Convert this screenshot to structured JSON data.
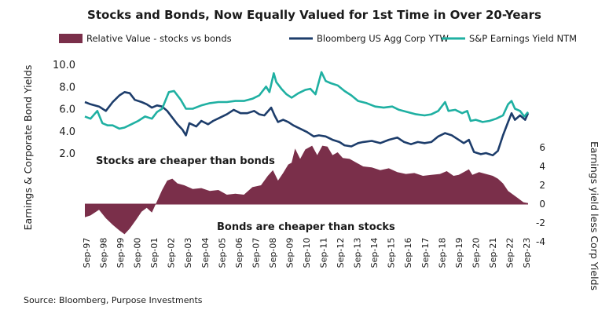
{
  "chart_data": {
    "type": "line",
    "title": "Stocks and Bonds, Now Equally Valued for 1st Time in Over 20-Years",
    "source": "Source: Bloomberg, Purpose Investments",
    "left_axis": {
      "label": "Earnings & Corporate Bond Yields",
      "ticks": [
        "2.0",
        "4.0",
        "6.0",
        "8.0",
        "10.0"
      ],
      "tick_values": [
        2,
        4,
        6,
        8,
        10
      ],
      "range": [
        2,
        10
      ]
    },
    "right_axis": {
      "label": "Earnings yield less  Corp Yields",
      "ticks": [
        "-4",
        "-2",
        "0",
        "2",
        "4",
        "6"
      ],
      "tick_values": [
        -4,
        -2,
        0,
        2,
        4,
        6
      ],
      "range": [
        -4,
        6
      ]
    },
    "x_axis": {
      "range": [
        1997.67,
        2023.67
      ],
      "ticks": [
        "Sep-97",
        "Sep-98",
        "Sep-99",
        "Sep-00",
        "Sep-01",
        "Sep-02",
        "Sep-03",
        "Sep-04",
        "Sep-05",
        "Sep-06",
        "Sep-07",
        "Sep-08",
        "Sep-09",
        "Sep-10",
        "Sep-11",
        "Sep-12",
        "Sep-13",
        "Sep-14",
        "Sep-15",
        "Sep-16",
        "Sep-17",
        "Sep-18",
        "Sep-19",
        "Sep-20",
        "Sep-21",
        "Sep-22",
        "Sep-23"
      ]
    },
    "annotations": {
      "cheaper_stocks": "Stocks are cheaper than bonds",
      "cheaper_bonds": "Bonds are cheaper than stocks"
    },
    "series": [
      {
        "name": "Relative Value - stocks vs bonds",
        "kind": "area",
        "axis": "right",
        "color": "#7a2f4a",
        "points": [
          [
            1997.67,
            -1.4
          ],
          [
            1998.0,
            -1.2
          ],
          [
            1998.5,
            -0.6
          ],
          [
            1998.9,
            -1.5
          ],
          [
            1999.3,
            -2.2
          ],
          [
            1999.7,
            -2.8
          ],
          [
            2000.0,
            -3.2
          ],
          [
            2000.3,
            -2.6
          ],
          [
            2000.7,
            -1.6
          ],
          [
            2001.0,
            -0.8
          ],
          [
            2001.3,
            -0.4
          ],
          [
            2001.6,
            -0.9
          ],
          [
            2001.9,
            0.3
          ],
          [
            2002.2,
            1.5
          ],
          [
            2002.5,
            2.5
          ],
          [
            2002.8,
            2.7
          ],
          [
            2003.1,
            2.2
          ],
          [
            2003.5,
            2.0
          ],
          [
            2004.0,
            1.6
          ],
          [
            2004.5,
            1.7
          ],
          [
            2005.0,
            1.4
          ],
          [
            2005.5,
            1.5
          ],
          [
            2006.0,
            1.0
          ],
          [
            2006.5,
            1.1
          ],
          [
            2007.0,
            1.0
          ],
          [
            2007.5,
            1.8
          ],
          [
            2008.0,
            2.0
          ],
          [
            2008.4,
            3.0
          ],
          [
            2008.7,
            3.6
          ],
          [
            2009.0,
            2.5
          ],
          [
            2009.3,
            3.3
          ],
          [
            2009.6,
            4.2
          ],
          [
            2009.8,
            4.4
          ],
          [
            2010.0,
            5.9
          ],
          [
            2010.3,
            4.8
          ],
          [
            2010.6,
            5.8
          ],
          [
            2010.8,
            6.0
          ],
          [
            2011.0,
            6.2
          ],
          [
            2011.3,
            5.2
          ],
          [
            2011.6,
            6.2
          ],
          [
            2011.9,
            6.1
          ],
          [
            2012.2,
            5.2
          ],
          [
            2012.5,
            5.5
          ],
          [
            2012.8,
            4.9
          ],
          [
            2013.2,
            4.8
          ],
          [
            2013.6,
            4.4
          ],
          [
            2014.0,
            4.0
          ],
          [
            2014.5,
            3.9
          ],
          [
            2015.0,
            3.6
          ],
          [
            2015.5,
            3.8
          ],
          [
            2016.0,
            3.4
          ],
          [
            2016.5,
            3.2
          ],
          [
            2017.0,
            3.3
          ],
          [
            2017.5,
            3.0
          ],
          [
            2018.0,
            3.1
          ],
          [
            2018.5,
            3.2
          ],
          [
            2018.9,
            3.5
          ],
          [
            2019.3,
            3.0
          ],
          [
            2019.6,
            3.1
          ],
          [
            2019.9,
            3.4
          ],
          [
            2020.2,
            3.7
          ],
          [
            2020.4,
            3.1
          ],
          [
            2020.8,
            3.4
          ],
          [
            2021.2,
            3.2
          ],
          [
            2021.6,
            3.0
          ],
          [
            2021.9,
            2.7
          ],
          [
            2022.2,
            2.2
          ],
          [
            2022.5,
            1.4
          ],
          [
            2022.8,
            1.0
          ],
          [
            2023.1,
            0.6
          ],
          [
            2023.4,
            0.2
          ],
          [
            2023.67,
            0.1
          ]
        ]
      },
      {
        "name": "Bloomberg US Agg Corp YTW",
        "kind": "line",
        "axis": "left",
        "color": "#1d3d6b",
        "points": [
          [
            1997.67,
            6.6
          ],
          [
            1998.0,
            6.4
          ],
          [
            1998.5,
            6.2
          ],
          [
            1998.9,
            5.8
          ],
          [
            1999.3,
            6.6
          ],
          [
            1999.7,
            7.2
          ],
          [
            2000.0,
            7.5
          ],
          [
            2000.3,
            7.4
          ],
          [
            2000.6,
            6.8
          ],
          [
            2001.0,
            6.6
          ],
          [
            2001.3,
            6.4
          ],
          [
            2001.6,
            6.1
          ],
          [
            2001.9,
            6.3
          ],
          [
            2002.2,
            6.2
          ],
          [
            2002.5,
            5.8
          ],
          [
            2002.8,
            5.2
          ],
          [
            2003.1,
            4.6
          ],
          [
            2003.4,
            4.1
          ],
          [
            2003.6,
            3.6
          ],
          [
            2003.8,
            4.7
          ],
          [
            2004.2,
            4.4
          ],
          [
            2004.5,
            4.9
          ],
          [
            2004.9,
            4.6
          ],
          [
            2005.2,
            4.9
          ],
          [
            2005.6,
            5.2
          ],
          [
            2006.0,
            5.5
          ],
          [
            2006.4,
            5.9
          ],
          [
            2006.8,
            5.6
          ],
          [
            2007.2,
            5.6
          ],
          [
            2007.6,
            5.8
          ],
          [
            2007.9,
            5.5
          ],
          [
            2008.2,
            5.4
          ],
          [
            2008.6,
            6.1
          ],
          [
            2008.8,
            5.4
          ],
          [
            2009.0,
            4.8
          ],
          [
            2009.3,
            5.0
          ],
          [
            2009.6,
            4.8
          ],
          [
            2009.9,
            4.5
          ],
          [
            2010.3,
            4.2
          ],
          [
            2010.7,
            3.9
          ],
          [
            2011.1,
            3.5
          ],
          [
            2011.4,
            3.6
          ],
          [
            2011.8,
            3.5
          ],
          [
            2012.2,
            3.2
          ],
          [
            2012.6,
            3.0
          ],
          [
            2012.9,
            2.7
          ],
          [
            2013.3,
            2.6
          ],
          [
            2013.7,
            2.9
          ],
          [
            2014.0,
            3.0
          ],
          [
            2014.5,
            3.1
          ],
          [
            2015.0,
            2.9
          ],
          [
            2015.5,
            3.2
          ],
          [
            2016.0,
            3.4
          ],
          [
            2016.4,
            3.0
          ],
          [
            2016.8,
            2.8
          ],
          [
            2017.2,
            3.0
          ],
          [
            2017.6,
            2.9
          ],
          [
            2018.0,
            3.0
          ],
          [
            2018.4,
            3.5
          ],
          [
            2018.8,
            3.8
          ],
          [
            2019.2,
            3.6
          ],
          [
            2019.6,
            3.2
          ],
          [
            2019.9,
            2.9
          ],
          [
            2020.2,
            3.2
          ],
          [
            2020.5,
            2.1
          ],
          [
            2020.9,
            1.9
          ],
          [
            2021.2,
            2.0
          ],
          [
            2021.6,
            1.8
          ],
          [
            2021.9,
            2.2
          ],
          [
            2022.2,
            3.6
          ],
          [
            2022.5,
            4.8
          ],
          [
            2022.7,
            5.6
          ],
          [
            2022.9,
            5.0
          ],
          [
            2023.2,
            5.4
          ],
          [
            2023.5,
            5.0
          ],
          [
            2023.67,
            5.6
          ]
        ]
      },
      {
        "name": "S&P Earnings Yield NTM",
        "kind": "line",
        "axis": "left",
        "color": "#1fb0a2",
        "points": [
          [
            1997.67,
            5.3
          ],
          [
            1998.0,
            5.1
          ],
          [
            1998.4,
            5.8
          ],
          [
            1998.7,
            4.7
          ],
          [
            1999.0,
            4.5
          ],
          [
            1999.3,
            4.5
          ],
          [
            1999.7,
            4.2
          ],
          [
            2000.0,
            4.3
          ],
          [
            2000.4,
            4.6
          ],
          [
            2000.8,
            4.9
          ],
          [
            2001.2,
            5.3
          ],
          [
            2001.6,
            5.1
          ],
          [
            2001.9,
            5.7
          ],
          [
            2002.2,
            6.0
          ],
          [
            2002.6,
            7.5
          ],
          [
            2002.9,
            7.6
          ],
          [
            2003.3,
            6.8
          ],
          [
            2003.6,
            6.0
          ],
          [
            2004.0,
            6.0
          ],
          [
            2004.5,
            6.3
          ],
          [
            2005.0,
            6.5
          ],
          [
            2005.5,
            6.6
          ],
          [
            2006.0,
            6.6
          ],
          [
            2006.5,
            6.7
          ],
          [
            2007.0,
            6.7
          ],
          [
            2007.5,
            6.9
          ],
          [
            2007.9,
            7.2
          ],
          [
            2008.3,
            8.0
          ],
          [
            2008.5,
            7.5
          ],
          [
            2008.75,
            9.2
          ],
          [
            2008.9,
            8.4
          ],
          [
            2009.2,
            7.8
          ],
          [
            2009.5,
            7.3
          ],
          [
            2009.8,
            7.0
          ],
          [
            2010.2,
            7.4
          ],
          [
            2010.6,
            7.7
          ],
          [
            2010.9,
            7.8
          ],
          [
            2011.2,
            7.3
          ],
          [
            2011.55,
            9.3
          ],
          [
            2011.8,
            8.5
          ],
          [
            2012.1,
            8.3
          ],
          [
            2012.5,
            8.1
          ],
          [
            2012.9,
            7.6
          ],
          [
            2013.3,
            7.2
          ],
          [
            2013.7,
            6.7
          ],
          [
            2014.2,
            6.5
          ],
          [
            2014.7,
            6.2
          ],
          [
            2015.2,
            6.1
          ],
          [
            2015.7,
            6.2
          ],
          [
            2016.1,
            5.9
          ],
          [
            2016.6,
            5.7
          ],
          [
            2017.1,
            5.5
          ],
          [
            2017.6,
            5.4
          ],
          [
            2018.0,
            5.5
          ],
          [
            2018.4,
            5.8
          ],
          [
            2018.8,
            6.6
          ],
          [
            2019.0,
            5.8
          ],
          [
            2019.4,
            5.9
          ],
          [
            2019.8,
            5.6
          ],
          [
            2020.1,
            5.8
          ],
          [
            2020.3,
            4.9
          ],
          [
            2020.6,
            5.0
          ],
          [
            2021.0,
            4.8
          ],
          [
            2021.4,
            4.9
          ],
          [
            2021.8,
            5.1
          ],
          [
            2022.2,
            5.4
          ],
          [
            2022.5,
            6.4
          ],
          [
            2022.7,
            6.7
          ],
          [
            2022.9,
            6.0
          ],
          [
            2023.2,
            5.8
          ],
          [
            2023.45,
            5.3
          ],
          [
            2023.67,
            5.7
          ]
        ]
      }
    ]
  }
}
